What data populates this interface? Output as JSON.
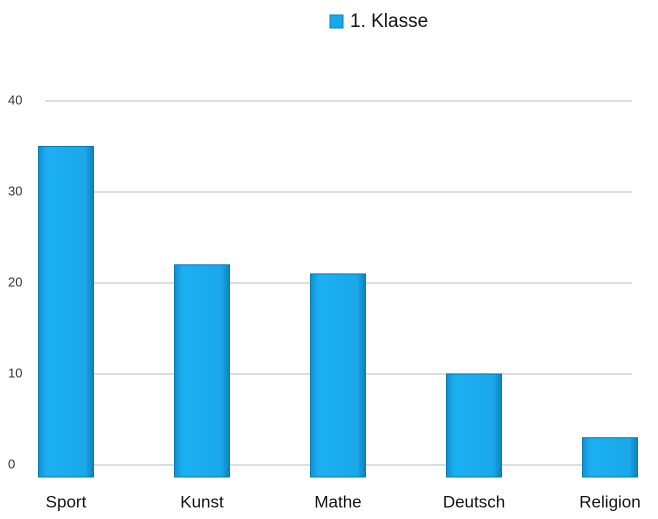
{
  "chart_data": {
    "type": "bar",
    "categories": [
      "Sport",
      "Kunst",
      "Mathe",
      "Deutsch",
      "Religion"
    ],
    "series": [
      {
        "name": "1. Klasse",
        "color": "#19a9ea",
        "values": [
          35,
          22,
          21,
          10,
          3
        ]
      }
    ],
    "ylim": [
      0,
      40
    ],
    "yticks": [
      0,
      10,
      20,
      30,
      40
    ],
    "grid": true,
    "legend": "top"
  }
}
